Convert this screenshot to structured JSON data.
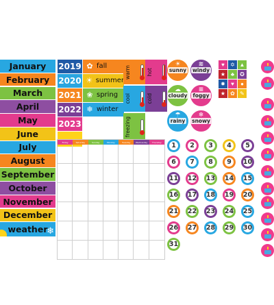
{
  "months": [
    {
      "label": "January",
      "color": "#28a7e1"
    },
    {
      "label": "February",
      "color": "#f6861f"
    },
    {
      "label": "March",
      "color": "#7dc242"
    },
    {
      "label": "April",
      "color": "#8e4ea1"
    },
    {
      "label": "May",
      "color": "#e33b8d"
    },
    {
      "label": "June",
      "color": "#f2c318"
    },
    {
      "label": "July",
      "color": "#28a7e1"
    },
    {
      "label": "August",
      "color": "#f6861f"
    },
    {
      "label": "September",
      "color": "#7dc242"
    },
    {
      "label": "October",
      "color": "#8e4ea1"
    },
    {
      "label": "November",
      "color": "#e33b8d"
    },
    {
      "label": "December",
      "color": "#f2c318"
    },
    {
      "label": "weather",
      "color": "#28a7e1"
    }
  ],
  "years": [
    {
      "label": "2019",
      "color": "#1f5aa6"
    },
    {
      "label": "2020",
      "color": "#29a5e0"
    },
    {
      "label": "2021",
      "color": "#f6861f"
    },
    {
      "label": "2022",
      "color": "#7b3f96"
    },
    {
      "label": "2023",
      "color": "#e33b8d"
    }
  ],
  "seasons": [
    {
      "label": "fall",
      "color": "#f6861f",
      "icon": "leaf-icon",
      "glyph": "✿"
    },
    {
      "label": "summer",
      "color": "#f2c318",
      "icon": "sun-icon",
      "glyph": "☀"
    },
    {
      "label": "spring",
      "color": "#7dc242",
      "icon": "flower-icon",
      "glyph": "❀"
    },
    {
      "label": "winter",
      "color": "#28a7e1",
      "icon": "snowflake-icon",
      "glyph": "❄"
    }
  ],
  "temperatures": [
    {
      "label": "warm",
      "color": "#f6861f"
    },
    {
      "label": "hot",
      "color": "#e33b8d"
    },
    {
      "label": "cool",
      "color": "#28a7e1"
    },
    {
      "label": "cold",
      "color": "#7b3f96"
    },
    {
      "label": "freezing",
      "color": "#7dc242"
    }
  ],
  "weather": [
    {
      "label": "sunny",
      "color": "#f6861f",
      "icon": "sun-icon"
    },
    {
      "label": "windy",
      "color": "#7b3f96",
      "icon": "wind-icon"
    },
    {
      "label": "cloudy",
      "color": "#7dc242",
      "icon": "cloud-icon"
    },
    {
      "label": "foggy",
      "color": "#e33b8d",
      "icon": "fog-icon"
    },
    {
      "label": "rainy",
      "color": "#28a7e1",
      "icon": "rain-icon"
    },
    {
      "label": "snowy",
      "color": "#e33b8d",
      "icon": "snow-icon"
    }
  ],
  "holidays": [
    {
      "icon": "heart-icon",
      "glyph": "♥",
      "color": "#e33b8d"
    },
    {
      "icon": "menorah-icon",
      "glyph": "✡",
      "color": "#1f5aa6"
    },
    {
      "icon": "tree-icon",
      "glyph": "▲",
      "color": "#7dc242"
    },
    {
      "icon": "flag-icon",
      "glyph": "★",
      "color": "#c0252d"
    },
    {
      "icon": "clover-icon",
      "glyph": "♣",
      "color": "#7dc242"
    },
    {
      "icon": "star-badge-icon",
      "glyph": "✪",
      "color": "#7b3f96"
    },
    {
      "icon": "firework-icon",
      "glyph": "✸",
      "color": "#1f5aa6"
    },
    {
      "icon": "heart-red-icon",
      "glyph": "♥",
      "color": "#e33b8d"
    },
    {
      "icon": "pumpkin-icon",
      "glyph": "●",
      "color": "#f6861f"
    },
    {
      "icon": "flag-us-icon",
      "glyph": "★",
      "color": "#c0252d"
    },
    {
      "icon": "turkey-icon",
      "glyph": "✿",
      "color": "#f6861f"
    },
    {
      "icon": "pencil-icon",
      "glyph": "✎",
      "color": "#f2c318"
    }
  ],
  "calendar": {
    "days": [
      {
        "label": "Friday",
        "color": "#e33b8d"
      },
      {
        "label": "Saturday",
        "color": "#f6861f"
      },
      {
        "label": "Sunday",
        "color": "#7dc242"
      },
      {
        "label": "Monday",
        "color": "#28a7e1"
      },
      {
        "label": "Tuesday",
        "color": "#f6861f"
      },
      {
        "label": "Wednesday",
        "color": "#7b3f96"
      },
      {
        "label": "Thursday",
        "color": "#e33b8d"
      }
    ],
    "rows": 6
  },
  "numbers": [
    {
      "n": "1",
      "color": "#28a7e1"
    },
    {
      "n": "2",
      "color": "#e33b8d"
    },
    {
      "n": "3",
      "color": "#7dc242"
    },
    {
      "n": "4",
      "color": "#f2c318"
    },
    {
      "n": "5",
      "color": "#7b3f96"
    },
    {
      "n": "6",
      "color": "#e33b8d"
    },
    {
      "n": "7",
      "color": "#28a7e1"
    },
    {
      "n": "8",
      "color": "#7dc242"
    },
    {
      "n": "9",
      "color": "#f6861f"
    },
    {
      "n": "10",
      "color": "#7b3f96"
    },
    {
      "n": "11",
      "color": "#7b3f96"
    },
    {
      "n": "12",
      "color": "#e33b8d"
    },
    {
      "n": "13",
      "color": "#7dc242"
    },
    {
      "n": "14",
      "color": "#f6861f"
    },
    {
      "n": "15",
      "color": "#28a7e1"
    },
    {
      "n": "16",
      "color": "#7dc242"
    },
    {
      "n": "17",
      "color": "#7b3f96"
    },
    {
      "n": "18",
      "color": "#28a7e1"
    },
    {
      "n": "19",
      "color": "#e33b8d"
    },
    {
      "n": "20",
      "color": "#f6861f"
    },
    {
      "n": "21",
      "color": "#f6861f"
    },
    {
      "n": "22",
      "color": "#7dc242"
    },
    {
      "n": "23",
      "color": "#7b3f96"
    },
    {
      "n": "24",
      "color": "#7dc242"
    },
    {
      "n": "25",
      "color": "#28a7e1"
    },
    {
      "n": "26",
      "color": "#e33b8d"
    },
    {
      "n": "27",
      "color": "#f6861f"
    },
    {
      "n": "28",
      "color": "#28a7e1"
    },
    {
      "n": "29",
      "color": "#7dc242"
    },
    {
      "n": "30",
      "color": "#28a7e1"
    },
    {
      "n": "31",
      "color": "#7dc242"
    }
  ],
  "cake_count": 12
}
